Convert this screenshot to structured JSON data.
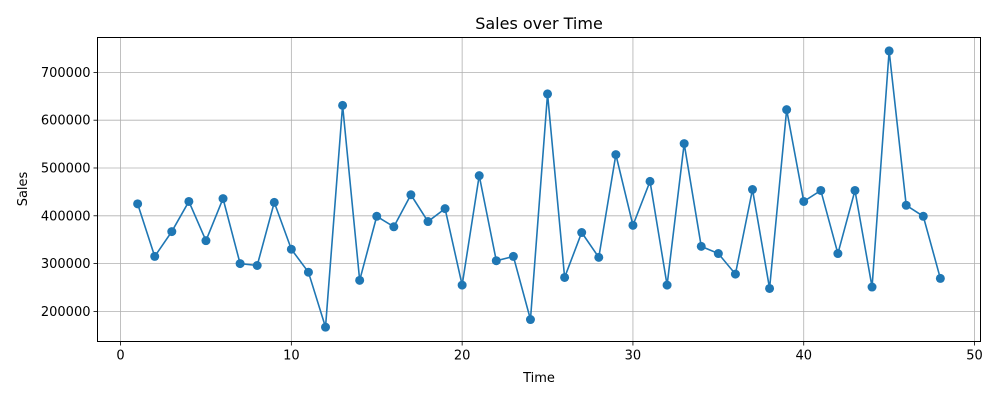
{
  "chart_data": {
    "type": "line",
    "title": "Sales over Time",
    "xlabel": "Time",
    "ylabel": "Sales",
    "xlim": [
      -1.35,
      50.35
    ],
    "ylim": [
      137000,
      773000
    ],
    "xticks": [
      0,
      10,
      20,
      30,
      40,
      50
    ],
    "yticks": [
      200000,
      300000,
      400000,
      500000,
      600000,
      700000
    ],
    "grid": true,
    "marker": "circle",
    "color": "#1f77b4",
    "x": [
      1,
      2,
      3,
      4,
      5,
      6,
      7,
      8,
      9,
      10,
      11,
      12,
      13,
      14,
      15,
      16,
      17,
      18,
      19,
      20,
      21,
      22,
      23,
      24,
      25,
      26,
      27,
      28,
      29,
      30,
      31,
      32,
      33,
      34,
      35,
      36,
      37,
      38,
      39,
      40,
      41,
      42,
      43,
      44,
      45,
      46,
      47,
      48
    ],
    "y": [
      425000,
      315000,
      367000,
      430000,
      348000,
      436000,
      300000,
      296000,
      428000,
      330000,
      282000,
      167000,
      631000,
      265000,
      399000,
      377000,
      444000,
      388000,
      415000,
      255000,
      484000,
      306000,
      315000,
      183000,
      655000,
      271000,
      365000,
      313000,
      528000,
      380000,
      472000,
      255000,
      551000,
      336000,
      321000,
      278000,
      455000,
      248000,
      622000,
      430000,
      453000,
      321000,
      453000,
      251000,
      745000,
      422000,
      399000,
      269000
    ]
  }
}
